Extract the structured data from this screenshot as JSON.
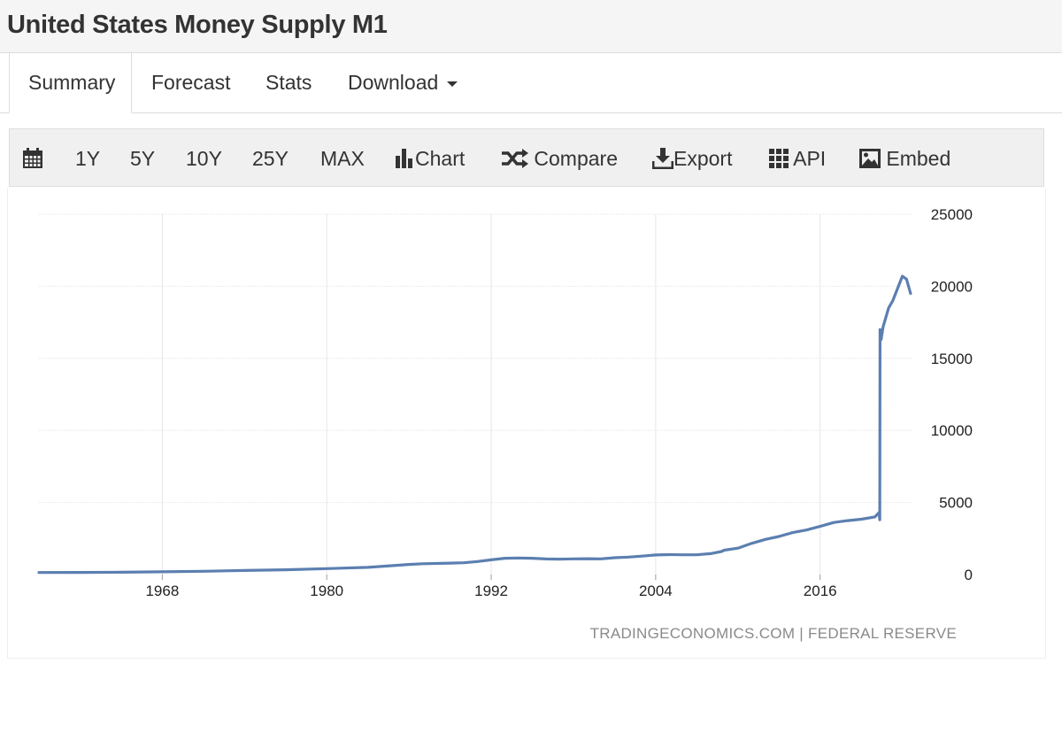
{
  "page": {
    "title": "United States Money Supply M1",
    "tabs": [
      {
        "label": "Summary",
        "active": true
      },
      {
        "label": "Forecast"
      },
      {
        "label": "Stats"
      },
      {
        "label": "Download",
        "dropdown": true
      }
    ]
  },
  "toolbar": {
    "calendar_icon": "calendar-icon",
    "ranges": [
      "1Y",
      "5Y",
      "10Y",
      "25Y",
      "MAX"
    ],
    "actions": [
      {
        "label": "Chart",
        "icon": "bar-chart-icon"
      },
      {
        "label": "Compare",
        "icon": "shuffle-icon"
      },
      {
        "label": "Export",
        "icon": "download-icon"
      },
      {
        "label": "API",
        "icon": "grid-icon"
      },
      {
        "label": "Embed",
        "icon": "image-icon"
      }
    ]
  },
  "colors": {
    "series_line": "#5b7fb0",
    "gridline": "#e6e6e6",
    "source_text": "#8a8a8a"
  },
  "chart_data": {
    "type": "line",
    "title": "",
    "xlabel": "",
    "ylabel": "",
    "xlim": [
      1959,
      2022.8
    ],
    "ylim": [
      0,
      25000
    ],
    "x_ticks": [
      1968,
      1980,
      1992,
      2004,
      2016
    ],
    "y_ticks": [
      0,
      5000,
      10000,
      15000,
      20000,
      25000
    ],
    "y_axis_position": "right",
    "grid": true,
    "source_text": "TRADINGECONOMICS.COM  |  FEDERAL RESERVE",
    "series": [
      {
        "x": [
          1959,
          1962,
          1965,
          1968,
          1971,
          1974,
          1977,
          1980,
          1983,
          1986,
          1987,
          1989,
          1990,
          1991,
          1992,
          1993,
          1994,
          1995,
          1996,
          1997,
          1998,
          1999,
          2000,
          2001,
          2002,
          2003,
          2004,
          2005,
          2006,
          2007,
          2008,
          2008.8,
          2009,
          2010,
          2011,
          2012,
          2013,
          2014,
          2015,
          2016,
          2017,
          2018,
          2019,
          2020.0,
          2020.3,
          2020.35,
          2020.37,
          2020.45,
          2020.6,
          2021,
          2021.3,
          2022,
          2022.3,
          2022.6
        ],
        "y": [
          140,
          145,
          160,
          190,
          230,
          280,
          330,
          410,
          500,
          700,
          750,
          790,
          820,
          900,
          1020,
          1130,
          1150,
          1130,
          1080,
          1070,
          1090,
          1100,
          1090,
          1170,
          1210,
          1280,
          1360,
          1380,
          1370,
          1370,
          1450,
          1600,
          1690,
          1830,
          2160,
          2440,
          2640,
          2910,
          3090,
          3340,
          3610,
          3740,
          3840,
          4000,
          4300,
          3800,
          17000,
          16300,
          17200,
          18500,
          19000,
          20700,
          20500,
          19500
        ]
      }
    ]
  }
}
